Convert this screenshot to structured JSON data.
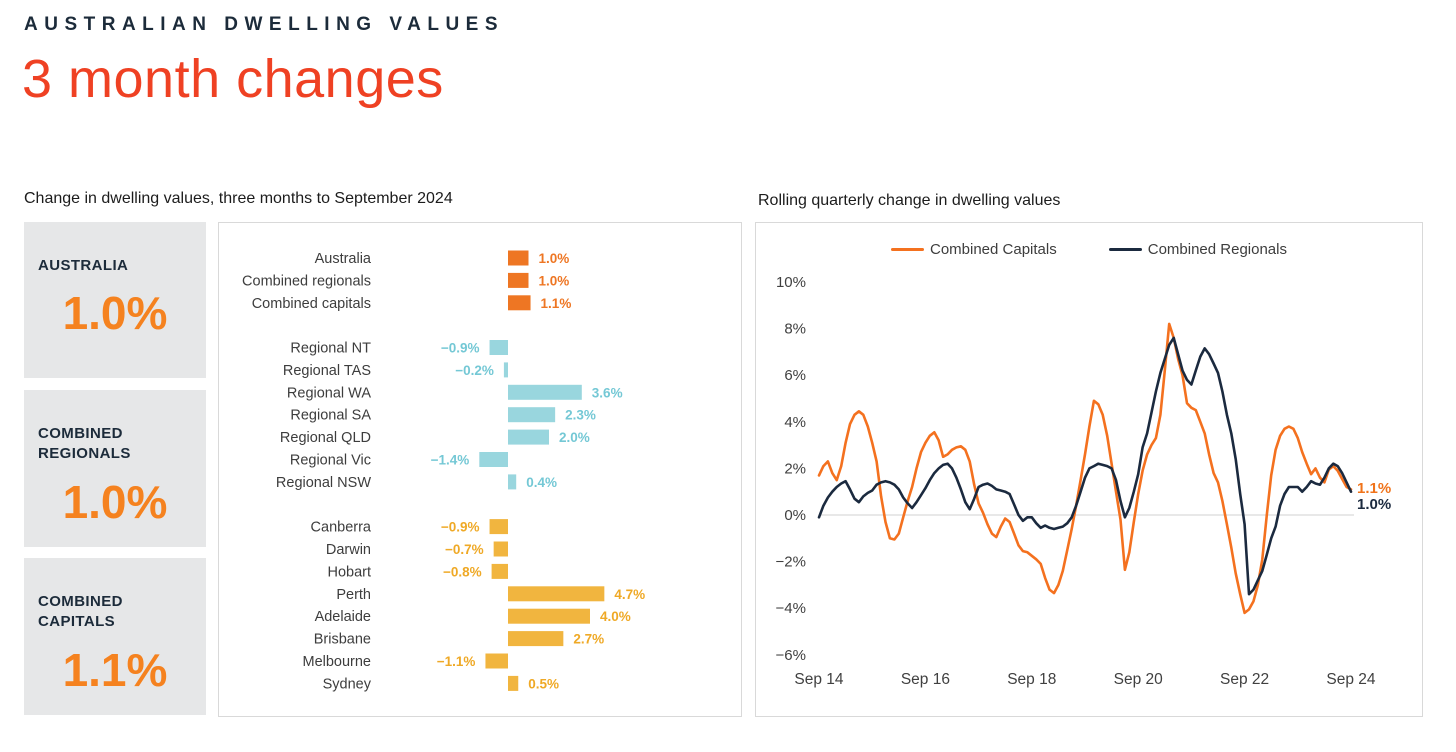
{
  "header": {
    "eyebrow": "AUSTRALIAN DWELLING VALUES",
    "title": "3 month changes"
  },
  "left_section": {
    "subtitle": "Change in dwelling values, three months to September 2024",
    "stats": [
      {
        "label": "AUSTRALIA",
        "value": "1.0%"
      },
      {
        "label": "COMBINED REGIONALS",
        "value": "1.0%"
      },
      {
        "label": "COMBINED CAPITALS",
        "value": "1.1%"
      }
    ]
  },
  "right_section": {
    "subtitle": "Rolling quarterly change in dwelling values"
  },
  "colors": {
    "heading_navy": "#1C2B3A",
    "title_orange": "#EF4123",
    "stat_orange": "#F5821F",
    "stat_box_bg": "#E6E7E8",
    "bar_orange": "#EE7623",
    "bar_teal": "#99D6DE",
    "bar_teal_text": "#74C8D5",
    "bar_gold": "#F1B53F",
    "bar_gold_text": "#EFA926",
    "line_orange": "#F4711F",
    "line_navy": "#1B2A3F",
    "zero_line": "#D9D9D9",
    "panel_border": "#D9D9D9",
    "axis_text": "#404040",
    "bar_label_text": "#3D3D3D"
  },
  "chart_data": [
    {
      "type": "bar",
      "title": "Change in dwelling values, three months to September 2024",
      "orientation": "horizontal",
      "unit": "%",
      "xlim": [
        -2,
        5
      ],
      "grid": false,
      "groups": [
        {
          "name": "national",
          "bar_color": "#EE7623",
          "value_color": "#EE7623",
          "rows": [
            {
              "label": "Australia",
              "value": 1.0,
              "display": "1.0%"
            },
            {
              "label": "Combined regionals",
              "value": 1.0,
              "display": "1.0%"
            },
            {
              "label": "Combined capitals",
              "value": 1.1,
              "display": "1.1%"
            }
          ]
        },
        {
          "name": "regionals",
          "bar_color": "#99D6DE",
          "value_color": "#74C8D5",
          "rows": [
            {
              "label": "Regional NT",
              "value": -0.9,
              "display": "−0.9%"
            },
            {
              "label": "Regional TAS",
              "value": -0.2,
              "display": "−0.2%"
            },
            {
              "label": "Regional WA",
              "value": 3.6,
              "display": "3.6%"
            },
            {
              "label": "Regional SA",
              "value": 2.3,
              "display": "2.3%"
            },
            {
              "label": "Regional QLD",
              "value": 2.0,
              "display": "2.0%"
            },
            {
              "label": "Regional Vic",
              "value": -1.4,
              "display": "−1.4%"
            },
            {
              "label": "Regional NSW",
              "value": 0.4,
              "display": "0.4%"
            }
          ]
        },
        {
          "name": "capitals",
          "bar_color": "#F1B53F",
          "value_color": "#EFA926",
          "rows": [
            {
              "label": "Canberra",
              "value": -0.9,
              "display": "−0.9%"
            },
            {
              "label": "Darwin",
              "value": -0.7,
              "display": "−0.7%"
            },
            {
              "label": "Hobart",
              "value": -0.8,
              "display": "−0.8%"
            },
            {
              "label": "Perth",
              "value": 4.7,
              "display": "4.7%"
            },
            {
              "label": "Adelaide",
              "value": 4.0,
              "display": "4.0%"
            },
            {
              "label": "Brisbane",
              "value": 2.7,
              "display": "2.7%"
            },
            {
              "label": "Melbourne",
              "value": -1.1,
              "display": "−1.1%"
            },
            {
              "label": "Sydney",
              "value": 0.5,
              "display": "0.5%"
            }
          ]
        }
      ]
    },
    {
      "type": "line",
      "title": "Rolling quarterly change in dwelling values",
      "x_start": "Sep 2014",
      "x_end": "Sep 2024",
      "x_interval": "monthly",
      "x_tick_labels": [
        "Sep 14",
        "Sep 16",
        "Sep 18",
        "Sep 20",
        "Sep 22",
        "Sep 24"
      ],
      "x_tick_months": [
        0,
        24,
        48,
        72,
        96,
        120
      ],
      "y_ticks": [
        10,
        8,
        6,
        4,
        2,
        0,
        -2,
        -4,
        -6
      ],
      "y_tick_labels": [
        "10%",
        "8%",
        "6%",
        "4%",
        "2%",
        "0%",
        "−2%",
        "−4%",
        "−6%"
      ],
      "ylim": [
        -6,
        10
      ],
      "grid": "zero-line-only",
      "legend_position": "top-center",
      "series": [
        {
          "name": "Combined Capitals",
          "color": "#F4711F",
          "end_label": "1.1%",
          "values": [
            1.7,
            2.1,
            2.3,
            1.8,
            1.5,
            2.1,
            3.1,
            3.9,
            4.3,
            4.45,
            4.3,
            3.8,
            3.1,
            2.3,
            0.8,
            -0.3,
            -1.0,
            -1.05,
            -0.8,
            -0.1,
            0.6,
            1.2,
            2.0,
            2.7,
            3.1,
            3.4,
            3.55,
            3.2,
            2.5,
            2.6,
            2.8,
            2.9,
            2.95,
            2.8,
            2.3,
            1.3,
            0.5,
            0.1,
            -0.4,
            -0.8,
            -0.95,
            -0.5,
            -0.15,
            -0.3,
            -0.8,
            -1.3,
            -1.55,
            -1.6,
            -1.75,
            -1.9,
            -2.1,
            -2.7,
            -3.2,
            -3.35,
            -3.0,
            -2.4,
            -1.5,
            -0.6,
            0.4,
            1.5,
            2.6,
            3.8,
            4.9,
            4.75,
            4.3,
            3.4,
            2.2,
            1.0,
            -0.2,
            -2.35,
            -1.6,
            -0.3,
            0.9,
            1.9,
            2.6,
            3.0,
            3.3,
            4.3,
            6.2,
            8.2,
            7.6,
            6.7,
            6.0,
            4.8,
            4.6,
            4.5,
            4.0,
            3.5,
            2.6,
            1.8,
            1.4,
            0.6,
            -0.4,
            -1.4,
            -2.5,
            -3.4,
            -4.2,
            -4.05,
            -3.7,
            -3.0,
            -1.9,
            0.0,
            1.7,
            2.8,
            3.4,
            3.7,
            3.8,
            3.7,
            3.3,
            2.7,
            2.2,
            1.75,
            2.0,
            1.6,
            1.4,
            1.95,
            2.1,
            1.9,
            1.55,
            1.2,
            1.1
          ]
        },
        {
          "name": "Combined Regionals",
          "color": "#1B2A3F",
          "end_label": "1.0%",
          "values": [
            -0.1,
            0.4,
            0.75,
            1.0,
            1.2,
            1.35,
            1.45,
            1.1,
            0.7,
            0.55,
            0.8,
            0.95,
            1.05,
            1.3,
            1.4,
            1.45,
            1.4,
            1.3,
            1.1,
            0.75,
            0.5,
            0.3,
            0.55,
            0.85,
            1.15,
            1.5,
            1.8,
            2.0,
            2.15,
            2.2,
            2.0,
            1.6,
            1.1,
            0.55,
            0.25,
            0.7,
            1.2,
            1.3,
            1.35,
            1.25,
            1.1,
            1.05,
            1.0,
            0.9,
            0.45,
            0.0,
            -0.25,
            -0.1,
            -0.1,
            -0.35,
            -0.55,
            -0.45,
            -0.55,
            -0.6,
            -0.55,
            -0.5,
            -0.35,
            -0.1,
            0.4,
            1.0,
            1.6,
            2.0,
            2.1,
            2.2,
            2.15,
            2.1,
            2.0,
            1.5,
            0.6,
            -0.1,
            0.3,
            1.0,
            1.75,
            2.9,
            3.5,
            4.4,
            5.3,
            6.1,
            6.7,
            7.3,
            7.6,
            6.9,
            6.2,
            5.8,
            5.6,
            6.2,
            6.8,
            7.15,
            6.9,
            6.5,
            6.1,
            5.3,
            4.3,
            3.5,
            2.4,
            0.9,
            -0.4,
            -3.4,
            -3.2,
            -2.8,
            -2.4,
            -1.7,
            -1.0,
            -0.5,
            0.4,
            0.9,
            1.2,
            1.2,
            1.2,
            1.0,
            1.2,
            1.45,
            1.35,
            1.3,
            1.6,
            2.0,
            2.2,
            2.1,
            1.8,
            1.4,
            1.0
          ]
        }
      ]
    }
  ]
}
